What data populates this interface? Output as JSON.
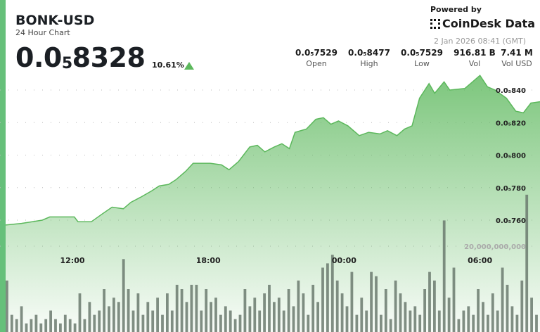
{
  "header": {
    "title": "BONK-USD",
    "subtitle": "24 Hour Chart",
    "price_prefix": "0.0",
    "price_sub": "5",
    "price_rest": "8328",
    "change": "10.61%",
    "direction": "up"
  },
  "branding": {
    "powered_by": "Powered by",
    "brand": "CoinDesk Data",
    "timestamp": "2 Jan 2026 08:41 (GMT)"
  },
  "stats": [
    {
      "value": "0.0₅7529",
      "label": "Open"
    },
    {
      "value": "0.0₅8477",
      "label": "High"
    },
    {
      "value": "0.0₅7529",
      "label": "Low"
    },
    {
      "value": "916.81 B",
      "label": "Vol"
    },
    {
      "value": "7.41 M",
      "label": "Vol USD"
    }
  ],
  "colors": {
    "accent": "#66c07a",
    "line": "#5cb85c",
    "volume": "#6b7a6e"
  },
  "chart_data": {
    "type": "area",
    "price_ticks": [
      {
        "value": 8.4e-06,
        "label": "0.0₅840"
      },
      {
        "value": 8.2e-06,
        "label": "0.0₅820"
      },
      {
        "value": 8e-06,
        "label": "0.0₅800"
      },
      {
        "value": 7.8e-06,
        "label": "0.0₅780"
      },
      {
        "value": 7.6e-06,
        "label": "0.0₅760"
      }
    ],
    "volume_tick": {
      "value": 20000000000,
      "label": "20,000,000,000"
    },
    "x_ticks": [
      "12:00",
      "18:00",
      "00:00",
      "06:00"
    ],
    "price": [
      [
        "08:41",
        7.57e-06
      ],
      [
        "09:45",
        7.58e-06
      ],
      [
        "10:40",
        7.6e-06
      ],
      [
        "11:00",
        7.62e-06
      ],
      [
        "11:35",
        7.62e-06
      ],
      [
        "12:05",
        7.62e-06
      ],
      [
        "12:15",
        7.59e-06
      ],
      [
        "12:50",
        7.59e-06
      ],
      [
        "13:20",
        7.64e-06
      ],
      [
        "13:45",
        7.68e-06
      ],
      [
        "14:15",
        7.67e-06
      ],
      [
        "14:35",
        7.71e-06
      ],
      [
        "15:00",
        7.74e-06
      ],
      [
        "15:30",
        7.78e-06
      ],
      [
        "15:50",
        7.81e-06
      ],
      [
        "16:15",
        7.82e-06
      ],
      [
        "16:35",
        7.85e-06
      ],
      [
        "17:00",
        7.9e-06
      ],
      [
        "17:20",
        7.95e-06
      ],
      [
        "18:05",
        7.95e-06
      ],
      [
        "18:35",
        7.94e-06
      ],
      [
        "18:55",
        7.91e-06
      ],
      [
        "19:20",
        7.96e-06
      ],
      [
        "19:50",
        8.05e-06
      ],
      [
        "20:10",
        8.06e-06
      ],
      [
        "20:30",
        8.02e-06
      ],
      [
        "20:55",
        8.05e-06
      ],
      [
        "21:15",
        8.07e-06
      ],
      [
        "21:35",
        8.04e-06
      ],
      [
        "21:50",
        8.14e-06
      ],
      [
        "22:20",
        8.16e-06
      ],
      [
        "22:45",
        8.22e-06
      ],
      [
        "23:05",
        8.23e-06
      ],
      [
        "23:25",
        8.19e-06
      ],
      [
        "23:45",
        8.21e-06
      ],
      [
        "00:10",
        8.18e-06
      ],
      [
        "00:40",
        8.12e-06
      ],
      [
        "01:05",
        8.14e-06
      ],
      [
        "01:35",
        8.13e-06
      ],
      [
        "01:55",
        8.15e-06
      ],
      [
        "02:20",
        8.12e-06
      ],
      [
        "02:40",
        8.16e-06
      ],
      [
        "03:00",
        8.18e-06
      ],
      [
        "03:20",
        8.35e-06
      ],
      [
        "03:45",
        8.44e-06
      ],
      [
        "04:00",
        8.38e-06
      ],
      [
        "04:25",
        8.45e-06
      ],
      [
        "04:40",
        8.4e-06
      ],
      [
        "05:20",
        8.41e-06
      ],
      [
        "05:35",
        8.44e-06
      ],
      [
        "06:00",
        8.49e-06
      ],
      [
        "06:20",
        8.42e-06
      ],
      [
        "06:40",
        8.4e-06
      ],
      [
        "07:10",
        8.35e-06
      ],
      [
        "07:35",
        8.27e-06
      ],
      [
        "07:55",
        8.26e-06
      ],
      [
        "08:15",
        8.32e-06
      ],
      [
        "08:41",
        8.328e-06
      ]
    ],
    "volume_billions": [
      12,
      4,
      3,
      6,
      2,
      3,
      4,
      2,
      3,
      5,
      3,
      2,
      4,
      3,
      2,
      9,
      3,
      7,
      4,
      5,
      10,
      6,
      8,
      7,
      17,
      10,
      5,
      9,
      4,
      7,
      5,
      8,
      4,
      9,
      5,
      11,
      10,
      7,
      11,
      11,
      5,
      10,
      7,
      8,
      4,
      6,
      5,
      3,
      4,
      10,
      6,
      8,
      5,
      9,
      11,
      7,
      8,
      5,
      10,
      6,
      12,
      9,
      4,
      11,
      7,
      15,
      16,
      18,
      12,
      9,
      6,
      14,
      4,
      8,
      5,
      14,
      13,
      4,
      10,
      3,
      12,
      9,
      7,
      5,
      6,
      4,
      10,
      14,
      12,
      5,
      26,
      8,
      15,
      3,
      5,
      6,
      4,
      10,
      7,
      4,
      9,
      5,
      15,
      11,
      6,
      4,
      12,
      32,
      8,
      4
    ]
  }
}
